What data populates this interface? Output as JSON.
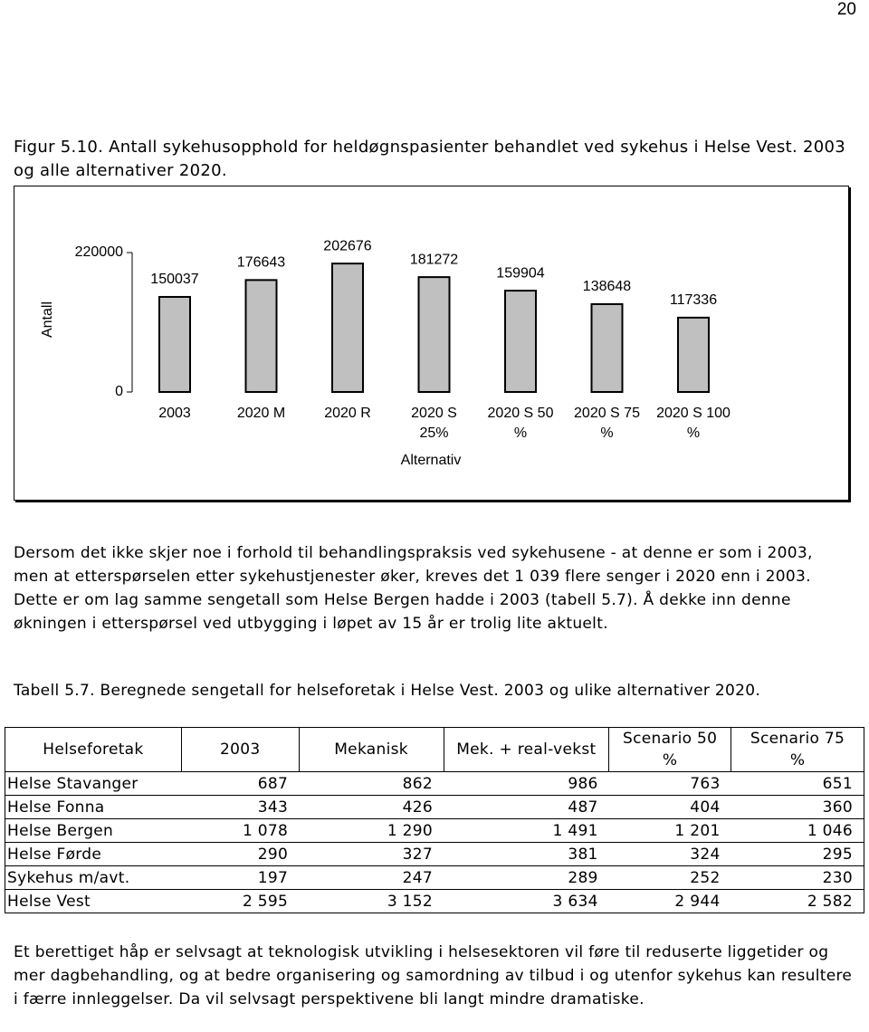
{
  "page_number": "20",
  "figure_caption": "Figur 5.10. Antall sykehusopphold for heldøgnspasienter behandlet ved sykehus i Helse Vest. 2003 og alle alternativer 2020.",
  "chart_data": {
    "type": "bar",
    "y_label": "Antall",
    "x_label": "Alternativ",
    "categories": [
      "2003",
      "2020 M",
      "2020 R",
      "2020 S 25%",
      "2020 S 50 %",
      "2020 S 75 %",
      "2020 S 100 %"
    ],
    "values": [
      150037,
      176643,
      202676,
      181272,
      159904,
      138648,
      117336
    ],
    "color": "#c0c0c0",
    "ylim": [
      0,
      220000
    ],
    "yticks": [
      0,
      220000
    ],
    "grid": false
  },
  "paragraph_1": "Dersom det ikke skjer noe i forhold til behandlingspraksis ved sykehusene - at denne er som i 2003, men at etterspørselen etter sykehustjenester øker, kreves det 1 039 flere senger i 2020 enn i 2003. Dette er om lag samme sengetall som Helse Bergen hadde i 2003 (tabell 5.7). Å dekke inn denne økningen i etterspørsel ved utbygging i løpet av 15 år er trolig lite aktuelt.",
  "table_caption": "Tabell 5.7. Beregnede sengetall for helseforetak i Helse Vest. 2003 og ulike alternativer 2020.",
  "table": {
    "header": [
      "Helseforetak",
      "2003",
      "Mekanisk",
      "Mek. + real-vekst",
      "Scenario 50 %",
      "Scenario 75 %"
    ],
    "rows": [
      [
        "Helse Stavanger",
        "687",
        "862",
        "986",
        "763",
        "651"
      ],
      [
        "Helse Fonna",
        "343",
        "426",
        "487",
        "404",
        "360"
      ],
      [
        "Helse Bergen",
        "1 078",
        "1 290",
        "1 491",
        "1 201",
        "1 046"
      ],
      [
        "Helse Førde",
        "290",
        "327",
        "381",
        "324",
        "295"
      ],
      [
        "Sykehus m/avt.",
        "197",
        "247",
        "289",
        "252",
        "230"
      ],
      [
        "Helse Vest",
        "2 595",
        "3 152",
        "3 634",
        "2 944",
        "2 582"
      ]
    ]
  },
  "paragraph_2": "Et berettiget håp er selvsagt at teknologisk utvikling i helsesektoren vil føre til reduserte liggetider og mer dagbehandling, og at bedre organisering og samordning av tilbud i og utenfor sykehus kan resultere i færre innleggelser. Da vil selvsagt perspektivene bli langt mindre dramatiske."
}
